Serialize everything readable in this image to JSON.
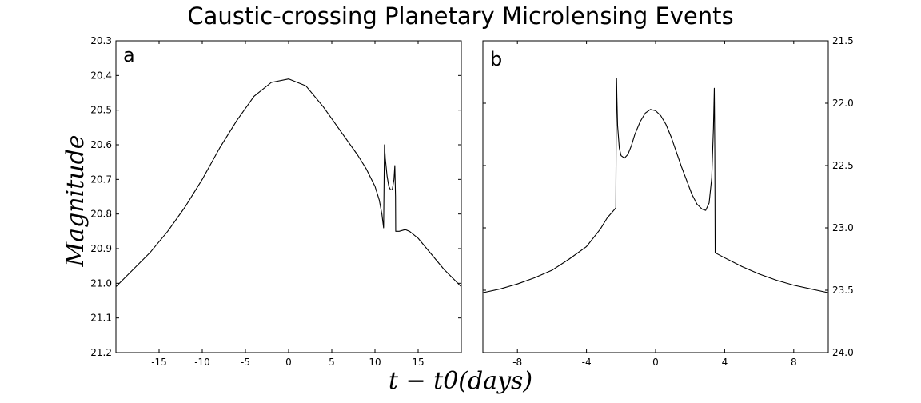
{
  "figure": {
    "title": "Caustic-crossing Planetary Microlensing Events",
    "ylabel": "Magnitude",
    "xlabel": "t − t0(days)"
  },
  "chart_data": [
    {
      "type": "line",
      "panel_label": "a",
      "xlim": [
        -20,
        20
      ],
      "ylim": [
        21.2,
        20.3
      ],
      "y_inverted": true,
      "ytick_side": "left",
      "xticks": [
        -15,
        -10,
        -5,
        0,
        5,
        10,
        15
      ],
      "xtick_labels": [
        "-15",
        "-10",
        "-5",
        "0",
        "5",
        "10",
        "15"
      ],
      "yticks": [
        20.3,
        20.4,
        20.5,
        20.6,
        20.7,
        20.8,
        20.9,
        21.0,
        21.1,
        21.2
      ],
      "ytick_labels": [
        "20.3",
        "20.4",
        "20.5",
        "20.6",
        "20.7",
        "20.8",
        "20.9",
        "21.0",
        "21.1",
        "21.2"
      ],
      "grid": false,
      "series": [
        {
          "color": "#000000",
          "points": [
            [
              -20,
              21.01
            ],
            [
              -18,
              20.96
            ],
            [
              -16,
              20.91
            ],
            [
              -14,
              20.85
            ],
            [
              -12,
              20.78
            ],
            [
              -10,
              20.7
            ],
            [
              -8,
              20.61
            ],
            [
              -6,
              20.53
            ],
            [
              -4,
              20.46
            ],
            [
              -2,
              20.42
            ],
            [
              0,
              20.41
            ],
            [
              2,
              20.43
            ],
            [
              4,
              20.49
            ],
            [
              6,
              20.56
            ],
            [
              8,
              20.63
            ],
            [
              9,
              20.67
            ],
            [
              10,
              20.72
            ],
            [
              10.5,
              20.76
            ],
            [
              10.8,
              20.8
            ],
            [
              11.0,
              20.84
            ],
            [
              11.1,
              20.6
            ],
            [
              11.2,
              20.64
            ],
            [
              11.4,
              20.69
            ],
            [
              11.6,
              20.72
            ],
            [
              11.8,
              20.73
            ],
            [
              12.0,
              20.73
            ],
            [
              12.2,
              20.7
            ],
            [
              12.3,
              20.66
            ],
            [
              12.38,
              20.75
            ],
            [
              12.4,
              20.85
            ],
            [
              12.8,
              20.85
            ],
            [
              13.5,
              20.845
            ],
            [
              14,
              20.85
            ],
            [
              15,
              20.87
            ],
            [
              16,
              20.9
            ],
            [
              18,
              20.96
            ],
            [
              20,
              21.01
            ]
          ]
        }
      ]
    },
    {
      "type": "line",
      "panel_label": "b",
      "xlim": [
        -10,
        10
      ],
      "ylim": [
        24.0,
        21.5
      ],
      "y_inverted": true,
      "ytick_side": "right",
      "xticks": [
        -8,
        -4,
        0,
        4,
        8
      ],
      "xtick_labels": [
        "-8",
        "-4",
        "0",
        "4",
        "8"
      ],
      "yticks": [
        21.5,
        22.0,
        22.5,
        23.0,
        23.5,
        24.0
      ],
      "ytick_labels": [
        "21.5",
        "22.0",
        "22.5",
        "23.0",
        "23.5",
        "24.0"
      ],
      "grid": false,
      "series": [
        {
          "color": "#000000",
          "points": [
            [
              -10,
              23.52
            ],
            [
              -9,
              23.49
            ],
            [
              -8,
              23.45
            ],
            [
              -7,
              23.4
            ],
            [
              -6,
              23.34
            ],
            [
              -5,
              23.25
            ],
            [
              -4,
              23.15
            ],
            [
              -3.2,
              23.01
            ],
            [
              -2.8,
              22.92
            ],
            [
              -2.3,
              22.84
            ],
            [
              -2.28,
              22.2
            ],
            [
              -2.26,
              21.8
            ],
            [
              -2.24,
              21.95
            ],
            [
              -2.2,
              22.18
            ],
            [
              -2.1,
              22.36
            ],
            [
              -2.0,
              22.42
            ],
            [
              -1.8,
              22.44
            ],
            [
              -1.6,
              22.41
            ],
            [
              -1.4,
              22.34
            ],
            [
              -1.2,
              22.25
            ],
            [
              -0.9,
              22.15
            ],
            [
              -0.6,
              22.08
            ],
            [
              -0.3,
              22.05
            ],
            [
              0,
              22.06
            ],
            [
              0.3,
              22.1
            ],
            [
              0.6,
              22.17
            ],
            [
              0.9,
              22.27
            ],
            [
              1.2,
              22.39
            ],
            [
              1.5,
              22.51
            ],
            [
              1.8,
              22.62
            ],
            [
              2.1,
              22.73
            ],
            [
              2.4,
              22.81
            ],
            [
              2.7,
              22.85
            ],
            [
              2.9,
              22.86
            ],
            [
              3.1,
              22.8
            ],
            [
              3.25,
              22.6
            ],
            [
              3.35,
              22.2
            ],
            [
              3.4,
              21.88
            ],
            [
              3.43,
              22.4
            ],
            [
              3.45,
              23.2
            ],
            [
              4,
              23.24
            ],
            [
              5,
              23.31
            ],
            [
              6,
              23.37
            ],
            [
              7,
              23.42
            ],
            [
              8,
              23.46
            ],
            [
              9,
              23.49
            ],
            [
              10,
              23.52
            ]
          ]
        }
      ]
    }
  ]
}
